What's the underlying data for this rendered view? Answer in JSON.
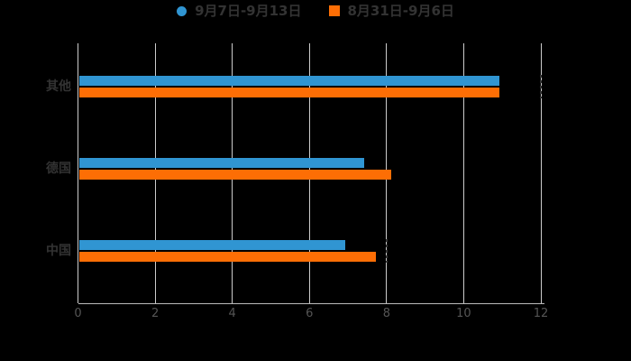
{
  "chart_data": {
    "type": "bar",
    "orientation": "horizontal",
    "title": "",
    "categories": [
      "其他",
      "德国",
      "中国"
    ],
    "series": [
      {
        "name": "9月7日-9月13日",
        "color": "#3095d2",
        "legend_marker": "circle",
        "values": [
          10.9,
          7.4,
          6.9
        ]
      },
      {
        "name": "8月31日-9月6日",
        "color": "#fd6e05",
        "legend_marker": "square",
        "values": [
          10.9,
          8.1,
          7.7
        ]
      }
    ],
    "x_axis": {
      "min": 0,
      "max": 12,
      "ticks": [
        0,
        2,
        4,
        6,
        8,
        10,
        12
      ]
    },
    "ylabel": "",
    "xlabel": "",
    "grid": true,
    "legend_position": "top-center",
    "dashed_markers": [
      {
        "category": "其他",
        "value": 12
      },
      {
        "category": "中国",
        "value": 8
      }
    ]
  },
  "colors": {
    "background": "#000000",
    "gridline": "#cccccc",
    "axis_line": "#bbbbbb",
    "tick_label": "#555555",
    "category_label": "#333333",
    "legend_text": "#333333",
    "marker_dash": "#333333"
  }
}
